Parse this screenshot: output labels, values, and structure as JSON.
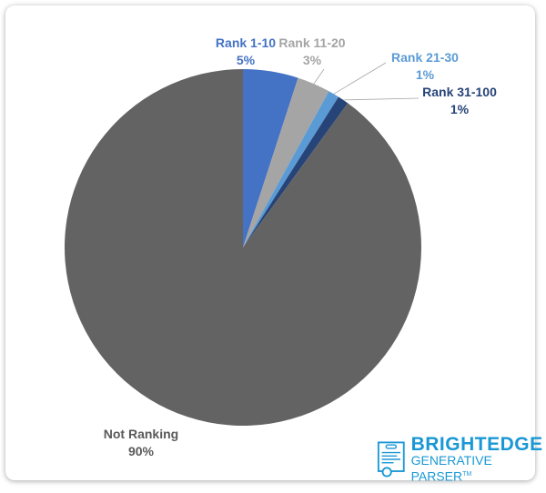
{
  "chart_data": {
    "type": "pie",
    "start_angle": "top, clockwise",
    "slices": [
      {
        "label": "Rank 1-10",
        "value": 5,
        "display": "5%",
        "color": "#4472C4",
        "label_color": "#4472C4"
      },
      {
        "label": "Rank 11-20",
        "value": 3,
        "display": "3%",
        "color": "#A5A5A5",
        "label_color": "#A5A5A5"
      },
      {
        "label": "Rank 21-30",
        "value": 1,
        "display": "1%",
        "color": "#5B9BD5",
        "label_color": "#5B9BD5"
      },
      {
        "label": "Rank 31-100",
        "value": 1,
        "display": "1%",
        "color": "#264478",
        "label_color": "#264478"
      },
      {
        "label": "Not Ranking",
        "value": 90,
        "display": "90%",
        "color": "#636363",
        "label_color": "#595959"
      }
    ]
  },
  "logo": {
    "line1": "BRIGHTEDGE",
    "line2": "GENERATIVE PARSER",
    "tm": "TM",
    "color": "#1a98d5"
  }
}
